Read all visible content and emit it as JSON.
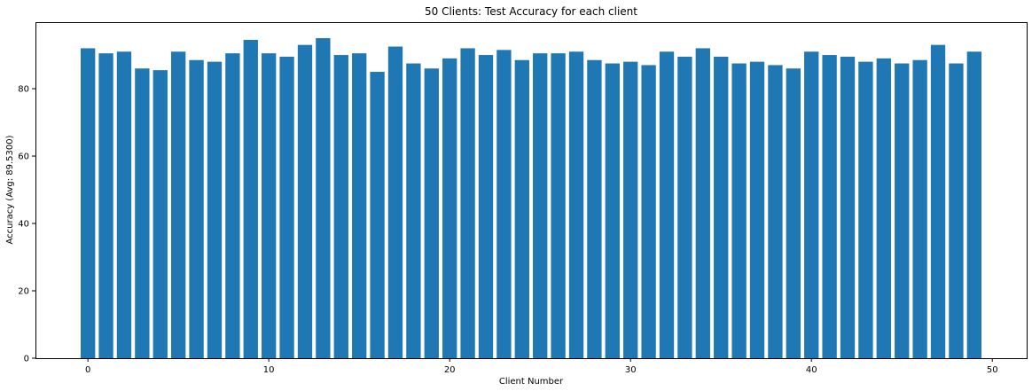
{
  "chart_data": {
    "type": "bar",
    "title": "50 Clients: Test Accuracy for each client",
    "xlabel": "Client Number",
    "ylabel": "Accuracy (Avg: 89.5300)",
    "x": [
      0,
      1,
      2,
      3,
      4,
      5,
      6,
      7,
      8,
      9,
      10,
      11,
      12,
      13,
      14,
      15,
      16,
      17,
      18,
      19,
      20,
      21,
      22,
      23,
      24,
      25,
      26,
      27,
      28,
      29,
      30,
      31,
      32,
      33,
      34,
      35,
      36,
      37,
      38,
      39,
      40,
      41,
      42,
      43,
      44,
      45,
      46,
      47,
      48,
      49
    ],
    "values": [
      92.0,
      90.5,
      91.0,
      86.0,
      85.5,
      91.0,
      88.5,
      88.0,
      90.5,
      94.5,
      90.5,
      89.5,
      93.0,
      95.0,
      90.0,
      90.5,
      85.0,
      92.5,
      87.5,
      86.0,
      89.0,
      92.0,
      90.0,
      91.5,
      88.5,
      90.5,
      90.5,
      91.0,
      88.5,
      87.5,
      88.0,
      87.0,
      91.0,
      89.5,
      92.0,
      89.5,
      87.5,
      88.0,
      87.0,
      86.0,
      91.0,
      90.0,
      89.5,
      88.0,
      89.0,
      87.5,
      88.5,
      93.0,
      87.5,
      91.0
    ],
    "xlim": [
      -2.9,
      51.9
    ],
    "ylim": [
      0,
      99.75
    ],
    "xticks": [
      0,
      10,
      20,
      30,
      40,
      50
    ],
    "yticks": [
      0,
      20,
      40,
      60,
      80
    ],
    "bar_color": "#1f77b4",
    "grid": false,
    "legend": "none"
  }
}
